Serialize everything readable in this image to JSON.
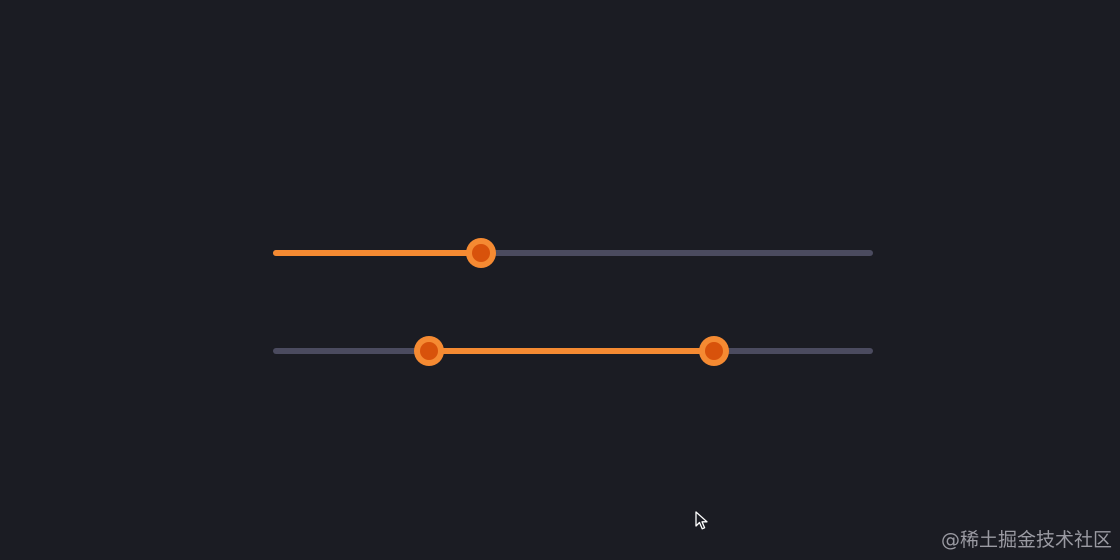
{
  "colors": {
    "background": "#1b1c23",
    "track": "#4b4b5f",
    "accent": "#f58a32",
    "thumb_core": "#d8520b"
  },
  "sliders": [
    {
      "type": "single",
      "value_fraction": 0.347
    },
    {
      "type": "range",
      "low_fraction": 0.26,
      "high_fraction": 0.735
    }
  ],
  "cursor": {
    "icon": "arrow-pointer-icon"
  },
  "watermark": {
    "text": "@稀土掘金技术社区"
  }
}
